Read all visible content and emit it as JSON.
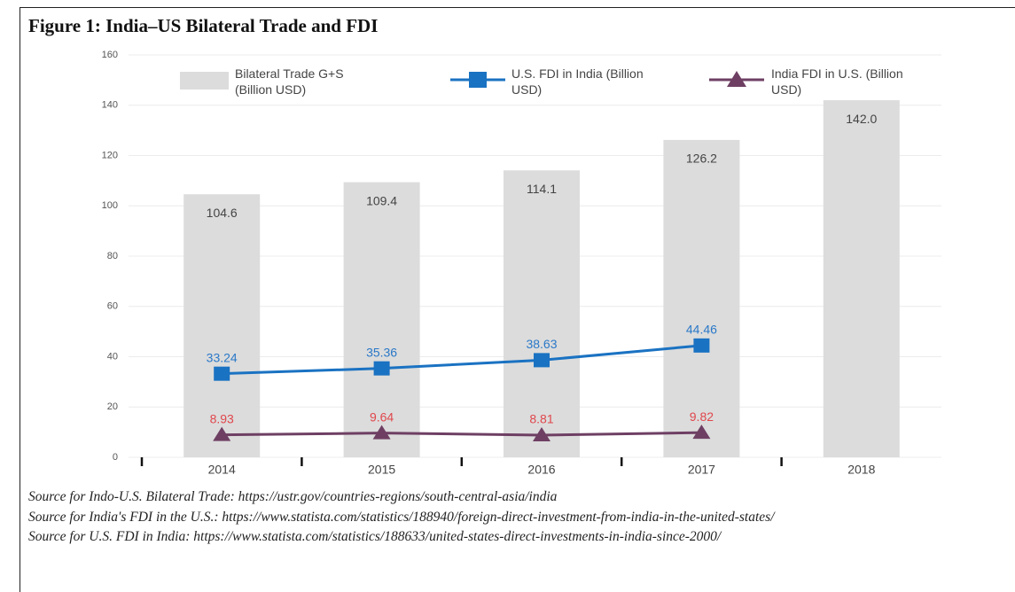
{
  "chart_data": {
    "type": "bar",
    "title": "Figure 1: India–US Bilateral Trade and FDI",
    "categories": [
      "2014",
      "2015",
      "2016",
      "2017",
      "2018"
    ],
    "series": [
      {
        "name": "Bilateral Trade G+S (Billion USD)",
        "type": "bar",
        "color": "#dcdcdc",
        "label_color": "#444444",
        "values": [
          104.6,
          109.4,
          114.1,
          126.2,
          142.0
        ],
        "value_labels": [
          "104.6",
          "109.4",
          "114.1",
          "126.2",
          "142.0"
        ]
      },
      {
        "name": "U.S. FDI in India (Billion USD)",
        "type": "line",
        "marker": "square",
        "color": "#1a72c2",
        "label_color": "#2a78c8",
        "values": [
          33.24,
          35.36,
          38.63,
          44.46,
          null
        ]
      },
      {
        "name": "India FDI in U.S. (Billion USD)",
        "type": "line",
        "marker": "triangle",
        "color": "#6e3f63",
        "label_color": "#e0474c",
        "values": [
          8.93,
          9.64,
          8.81,
          9.82,
          null
        ]
      }
    ],
    "ylim": [
      0,
      160
    ],
    "yticks": [
      0,
      20,
      40,
      60,
      80,
      100,
      120,
      140,
      160
    ],
    "grid": true,
    "legend": "top",
    "notes": [
      "Source for Indo-U.S. Bilateral Trade: https://ustr.gov/countries-regions/south-central-asia/india",
      "Source for India's FDI in the U.S.: https://www.statista.com/statistics/188940/foreign-direct-investment-from-india-in-the-united-states/",
      "Source for U.S. FDI in India: https://www.statista.com/statistics/188633/united-states-direct-investments-in-india-since-2000/"
    ]
  }
}
